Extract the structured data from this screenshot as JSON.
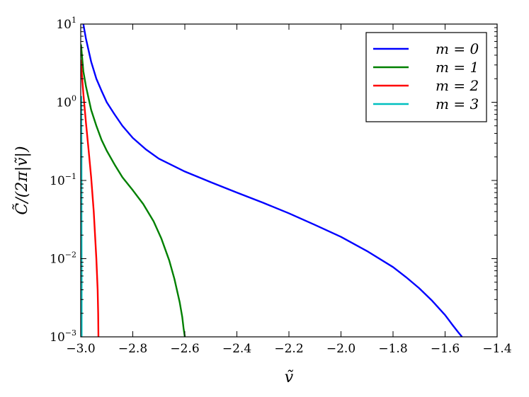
{
  "chart_data": {
    "type": "line",
    "title": "",
    "xlabel": "ṽ",
    "ylabel": "C̃/(2π|ṽ|)",
    "xlim": [
      -3.0,
      -1.4
    ],
    "ylim": [
      0.001,
      10
    ],
    "yscale": "log",
    "grid": false,
    "legend_position": "top-right",
    "x_ticks": [
      -3.0,
      -2.8,
      -2.6,
      -2.4,
      -2.2,
      -2.0,
      -1.8,
      -1.6,
      -1.4
    ],
    "x_tick_labels": [
      "−3.0",
      "−2.8",
      "−2.6",
      "−2.4",
      "−2.2",
      "−2.0",
      "−1.8",
      "−1.6",
      "−1.4"
    ],
    "y_ticks": [
      0.001,
      0.01,
      0.1,
      1,
      10
    ],
    "y_tick_labels": [
      {
        "base": "10",
        "exp": "−3"
      },
      {
        "base": "10",
        "exp": "−2"
      },
      {
        "base": "10",
        "exp": "−1"
      },
      {
        "base": "10",
        "exp": "0"
      },
      {
        "base": "10",
        "exp": "1"
      }
    ],
    "series": [
      {
        "name": "m = 0",
        "color": "#0000ff",
        "x": [
          -2.99,
          -2.98,
          -2.96,
          -2.94,
          -2.92,
          -2.9,
          -2.87,
          -2.84,
          -2.8,
          -2.75,
          -2.7,
          -2.6,
          -2.5,
          -2.4,
          -2.3,
          -2.2,
          -2.1,
          -2.0,
          -1.9,
          -1.8,
          -1.75,
          -1.7,
          -1.65,
          -1.6,
          -1.57,
          -1.55,
          -1.535
        ],
        "y": [
          10,
          6.5,
          3.3,
          2.0,
          1.4,
          1.0,
          0.7,
          0.5,
          0.35,
          0.25,
          0.19,
          0.13,
          0.095,
          0.07,
          0.052,
          0.038,
          0.027,
          0.019,
          0.0125,
          0.0078,
          0.0058,
          0.0042,
          0.0029,
          0.0019,
          0.0014,
          0.00115,
          0.001
        ]
      },
      {
        "name": "m = 1",
        "color": "#008000",
        "x": [
          -2.999,
          -2.99,
          -2.98,
          -2.96,
          -2.94,
          -2.92,
          -2.9,
          -2.87,
          -2.84,
          -2.8,
          -2.76,
          -2.72,
          -2.69,
          -2.66,
          -2.64,
          -2.62,
          -2.61,
          -2.605,
          -2.6
        ],
        "y": [
          5.5,
          2.5,
          1.6,
          0.8,
          0.5,
          0.33,
          0.24,
          0.16,
          0.11,
          0.075,
          0.05,
          0.03,
          0.018,
          0.0095,
          0.0055,
          0.0028,
          0.0018,
          0.0013,
          0.001
        ]
      },
      {
        "name": "m = 2",
        "color": "#ff0000",
        "x": [
          -3.0,
          -2.99,
          -2.98,
          -2.97,
          -2.96,
          -2.95,
          -2.94,
          -2.935,
          -2.933,
          -2.932
        ],
        "y": [
          3.5,
          1.3,
          0.55,
          0.25,
          0.11,
          0.04,
          0.01,
          0.004,
          0.002,
          0.001
        ]
      },
      {
        "name": "m = 3",
        "color": "#00bfbf",
        "x": [
          -2.998,
          -2.997,
          -2.997,
          -2.9965,
          -2.9965
        ],
        "y": [
          1.2,
          0.2,
          0.03,
          0.005,
          0.001
        ]
      }
    ]
  }
}
